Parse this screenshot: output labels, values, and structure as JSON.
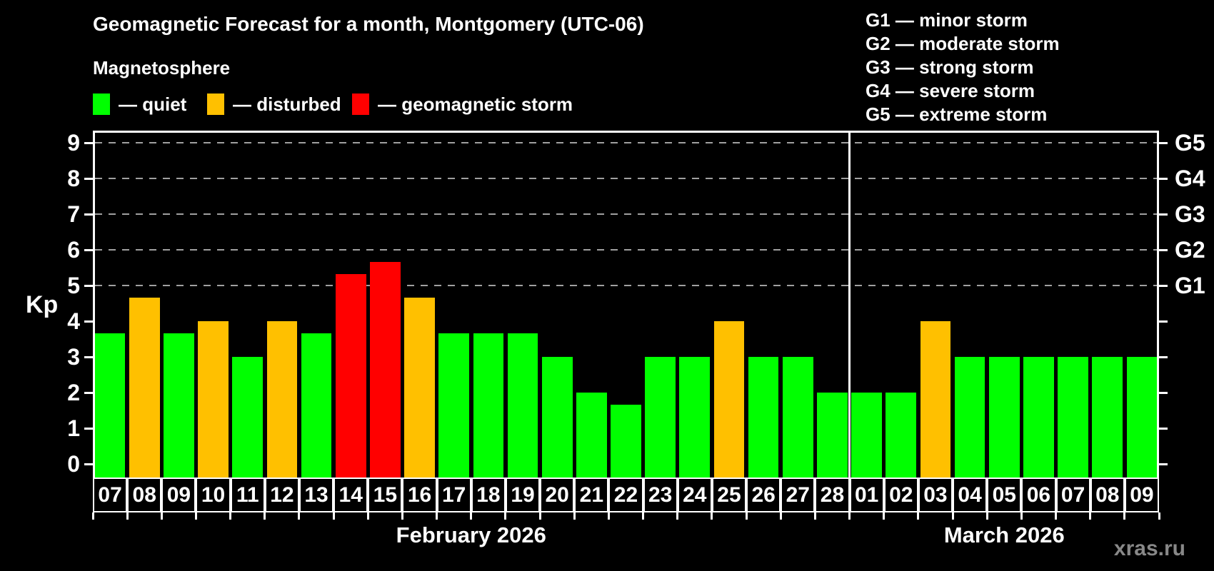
{
  "header": {
    "title": "Geomagnetic Forecast for a month, Montgomery (UTC-06)",
    "subtitle": "Magnetosphere"
  },
  "legend": {
    "items": [
      {
        "label": "— quiet",
        "status": "quiet",
        "color": "#00ff00"
      },
      {
        "label": "— disturbed",
        "status": "disturbed",
        "color": "#ffc000"
      },
      {
        "label": "— geomagnetic storm",
        "status": "storm",
        "color": "#ff0000"
      }
    ]
  },
  "g_legend": {
    "items": [
      "G1 — minor storm",
      "G2 — moderate storm",
      "G3 — strong storm",
      "G4 — severe storm",
      "G5 — extreme storm"
    ]
  },
  "axes": {
    "y_label": "Kp",
    "y_ticks": [
      0,
      1,
      2,
      3,
      4,
      5,
      6,
      7,
      8,
      9
    ],
    "right_tick_labels": [
      {
        "value": 5,
        "label": "G1"
      },
      {
        "value": 6,
        "label": "G2"
      },
      {
        "value": 7,
        "label": "G3"
      },
      {
        "value": 8,
        "label": "G4"
      },
      {
        "value": 9,
        "label": "G5"
      }
    ],
    "gridline_values": [
      5,
      6,
      7,
      8,
      9
    ]
  },
  "chart_data": {
    "type": "bar",
    "title": "Geomagnetic Forecast for a month, Montgomery (UTC-06)",
    "xlabel": "",
    "ylabel": "Kp",
    "ylim": [
      0,
      9
    ],
    "grid": "dashed horizontal at Kp 5-9 only",
    "legend_position": "top",
    "categories": [
      "07",
      "08",
      "09",
      "10",
      "11",
      "12",
      "13",
      "14",
      "15",
      "16",
      "17",
      "18",
      "19",
      "20",
      "21",
      "22",
      "23",
      "24",
      "25",
      "26",
      "27",
      "28",
      "01",
      "02",
      "03",
      "04",
      "05",
      "06",
      "07",
      "08",
      "09"
    ],
    "values": [
      3.67,
      4.67,
      3.67,
      4,
      3,
      4,
      3.67,
      5.33,
      5.67,
      4.67,
      3.67,
      3.67,
      3.67,
      3,
      2,
      1.67,
      3,
      3,
      4,
      3,
      3,
      2,
      2,
      2,
      4,
      3,
      3,
      3,
      3,
      3,
      3
    ],
    "statuses": [
      "quiet",
      "disturbed",
      "quiet",
      "disturbed",
      "quiet",
      "disturbed",
      "quiet",
      "storm",
      "storm",
      "disturbed",
      "quiet",
      "quiet",
      "quiet",
      "quiet",
      "quiet",
      "quiet",
      "quiet",
      "quiet",
      "disturbed",
      "quiet",
      "quiet",
      "quiet",
      "quiet",
      "quiet",
      "disturbed",
      "quiet",
      "quiet",
      "quiet",
      "quiet",
      "quiet",
      "quiet"
    ],
    "months": [
      {
        "label": "February 2026",
        "abbr": "feb",
        "start_index": 0,
        "days": 22
      },
      {
        "label": "March 2026",
        "abbr": "mar",
        "start_index": 22,
        "days": 9
      }
    ]
  },
  "colors": {
    "quiet": "#00ff00",
    "disturbed": "#ffc000",
    "storm": "#ff0000",
    "background": "#000000",
    "axis": "#ffffff",
    "gridline": "#a0a0a0",
    "watermark": "#888888"
  },
  "footer": {
    "watermark": "xras.ru"
  }
}
